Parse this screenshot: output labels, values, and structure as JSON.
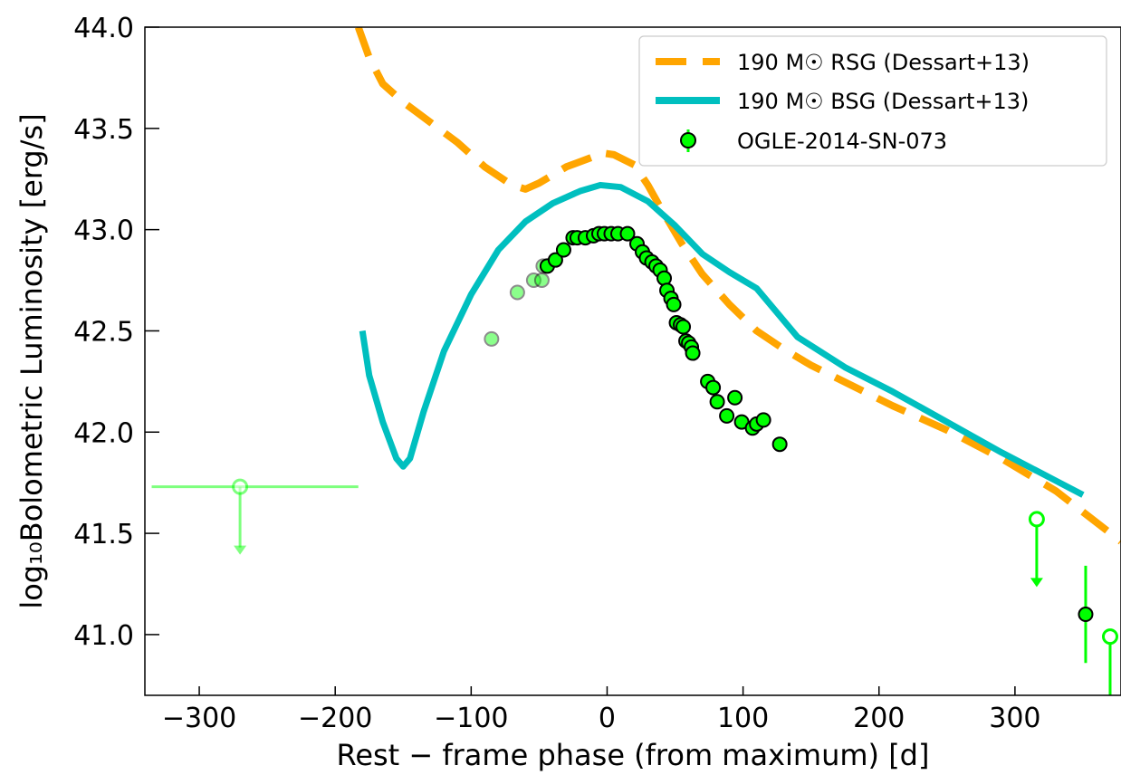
{
  "chart_data": {
    "type": "line",
    "xlabel": "Rest − frame phase (from maximum) [d]",
    "ylabel": "log₁₀Bolometric Luminosity [erg/s]",
    "xlim": [
      -340,
      378
    ],
    "ylim": [
      40.7,
      44.0
    ],
    "xticks": [
      -300,
      -200,
      -100,
      0,
      100,
      200,
      300
    ],
    "yticks": [
      41.0,
      41.5,
      42.0,
      42.5,
      43.0,
      43.5,
      44.0
    ],
    "xtick_labels": [
      "−300",
      "−200",
      "−100",
      "0",
      "100",
      "200",
      "300"
    ],
    "ytick_labels": [
      "41.0",
      "41.5",
      "42.0",
      "42.5",
      "43.0",
      "43.5",
      "44.0"
    ],
    "grid": false,
    "legend_position": "top-right",
    "colors": {
      "rsg": "#ffa500",
      "bsg": "#00bfbf",
      "data": "#00ff00",
      "data_edge": "#000000"
    },
    "series": [
      {
        "name": "190 M☉ RSG (Dessart+13)",
        "style": "dashed",
        "x": [
          -183,
          -175,
          -165,
          -150,
          -130,
          -110,
          -90,
          -70,
          -60,
          -50,
          -30,
          -10,
          -5,
          5,
          20,
          30,
          40,
          55,
          70,
          90,
          110,
          130,
          150,
          180,
          210,
          250,
          290,
          330,
          378
        ],
        "y": [
          44.0,
          43.85,
          43.72,
          43.63,
          43.53,
          43.43,
          43.31,
          43.22,
          43.2,
          43.23,
          43.31,
          43.36,
          43.38,
          43.37,
          43.32,
          43.22,
          43.1,
          42.93,
          42.78,
          42.63,
          42.5,
          42.41,
          42.33,
          42.23,
          42.13,
          42.01,
          41.87,
          41.71,
          41.46
        ]
      },
      {
        "name": "190 M☉ BSG (Dessart+13)",
        "style": "solid",
        "x": [
          -180,
          -175,
          -165,
          -155,
          -150,
          -145,
          -135,
          -120,
          -100,
          -80,
          -60,
          -40,
          -20,
          -5,
          10,
          30,
          50,
          70,
          90,
          110,
          140,
          175,
          210,
          250,
          290,
          330,
          350
        ],
        "y": [
          42.5,
          42.28,
          42.05,
          41.87,
          41.83,
          41.87,
          42.1,
          42.4,
          42.68,
          42.9,
          43.04,
          43.13,
          43.19,
          43.22,
          43.21,
          43.14,
          43.02,
          42.88,
          42.79,
          42.71,
          42.47,
          42.32,
          42.2,
          42.05,
          41.9,
          41.76,
          41.69
        ]
      },
      {
        "name": "OGLE-2014-SN-073",
        "style": "markers",
        "x": [
          -85,
          -66,
          -54,
          -48,
          -47,
          -44,
          -38,
          -32,
          -25,
          -22,
          -16,
          -10,
          -6,
          -2,
          3,
          8,
          15,
          22,
          26,
          29,
          33,
          36,
          39,
          42,
          44,
          47,
          49,
          51,
          54,
          56,
          58,
          60,
          62,
          63,
          74,
          78,
          81,
          88,
          94,
          99,
          107,
          110,
          115,
          127
        ],
        "y": [
          42.46,
          42.69,
          42.75,
          42.75,
          42.82,
          42.82,
          42.85,
          42.9,
          42.96,
          42.96,
          42.96,
          42.97,
          42.98,
          42.98,
          42.98,
          42.98,
          42.98,
          42.93,
          42.89,
          42.86,
          42.84,
          42.82,
          42.8,
          42.76,
          42.7,
          42.66,
          42.63,
          42.54,
          42.53,
          42.52,
          42.45,
          42.44,
          42.42,
          42.39,
          42.25,
          42.22,
          42.15,
          42.08,
          42.17,
          42.05,
          42.02,
          42.04,
          42.06,
          41.94
        ],
        "extra_points": [
          {
            "x": 352,
            "y": 41.1,
            "yerr": 0.24,
            "type": "detection"
          }
        ],
        "upper_limits": [
          {
            "x": -270,
            "y": 41.73,
            "xmin": -335,
            "xmax": -183,
            "faded": true
          },
          {
            "x": 316,
            "y": 41.57,
            "faded": false
          },
          {
            "x": 370,
            "y": 40.99,
            "faded": false
          }
        ]
      }
    ]
  }
}
